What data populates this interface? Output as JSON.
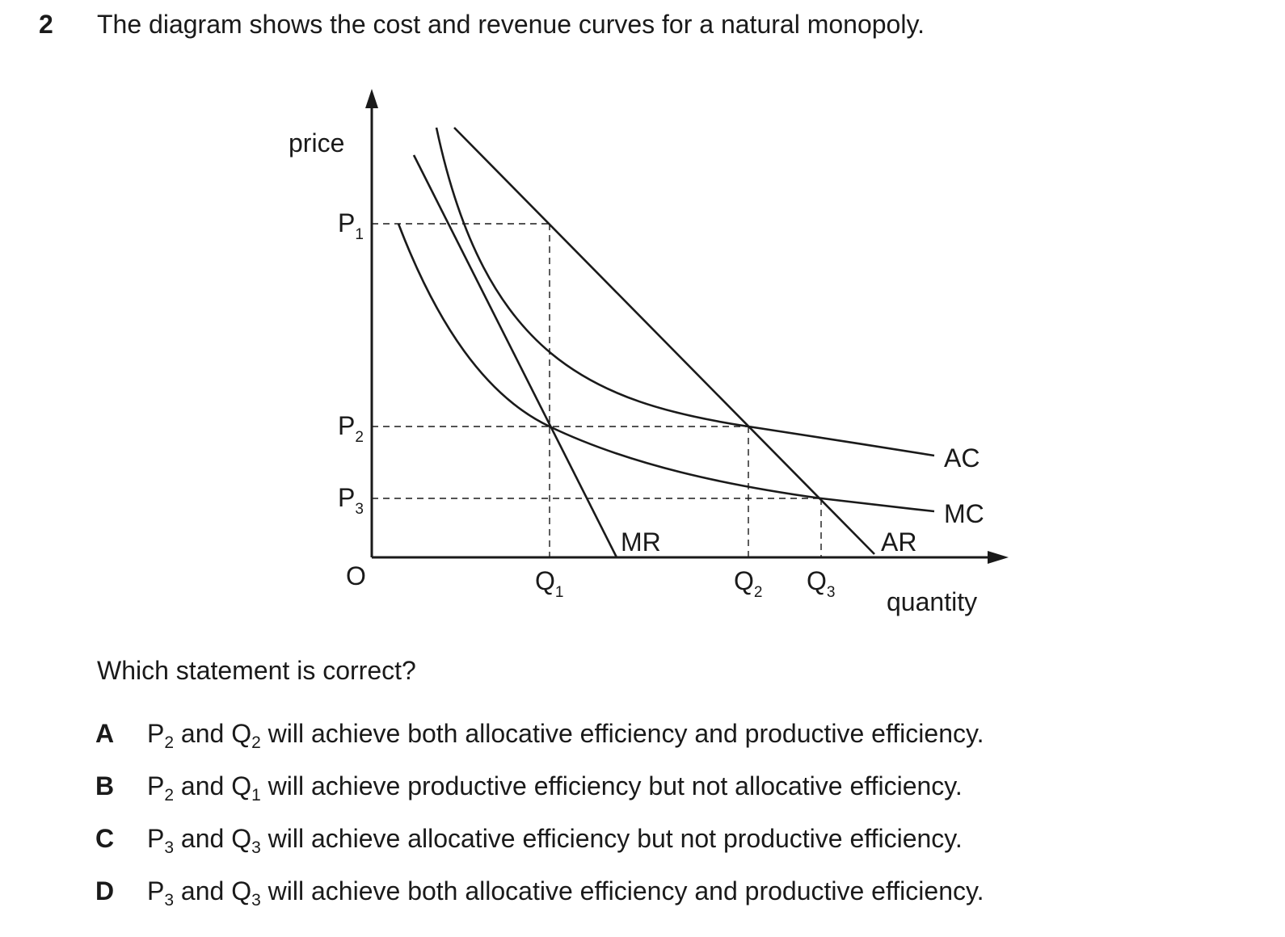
{
  "question": {
    "number": "2",
    "stem": "The diagram shows the cost and revenue curves for a natural monopoly.",
    "prompt": "Which statement is correct?"
  },
  "diagram": {
    "y_axis_label": "price",
    "x_axis_label": "quantity",
    "origin_label": "O",
    "price_levels": [
      {
        "base": "P",
        "sub": "1"
      },
      {
        "base": "P",
        "sub": "2"
      },
      {
        "base": "P",
        "sub": "3"
      }
    ],
    "quantity_levels": [
      {
        "base": "Q",
        "sub": "1"
      },
      {
        "base": "Q",
        "sub": "2"
      },
      {
        "base": "Q",
        "sub": "3"
      }
    ],
    "curves": {
      "mr": "MR",
      "ar": "AR",
      "ac": "AC",
      "mc": "MC"
    }
  },
  "options": [
    {
      "letter": "A",
      "p": "P",
      "p_sub": "2",
      "and": "and",
      "q": "Q",
      "q_sub": "2",
      "text": "will achieve both allocative efficiency and productive efficiency."
    },
    {
      "letter": "B",
      "p": "P",
      "p_sub": "2",
      "and": "and",
      "q": "Q",
      "q_sub": "1",
      "text": "will achieve productive efficiency but not allocative efficiency."
    },
    {
      "letter": "C",
      "p": "P",
      "p_sub": "3",
      "and": "and",
      "q": "Q",
      "q_sub": "3",
      "text": "will achieve allocative efficiency but not productive efficiency."
    },
    {
      "letter": "D",
      "p": "P",
      "p_sub": "3",
      "and": "and",
      "q": "Q",
      "q_sub": "3",
      "text": "will achieve both allocative efficiency and productive efficiency."
    }
  ]
}
